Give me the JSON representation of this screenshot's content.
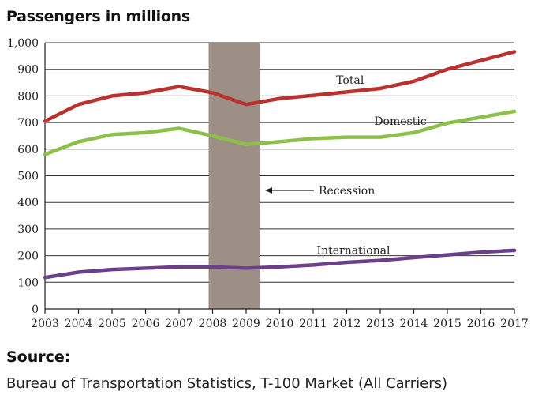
{
  "header": {
    "title": "Passengers in millions"
  },
  "source": {
    "label": "Source:",
    "text": "Bureau of Transportation Statistics, T-100 Market (All Carriers)"
  },
  "chart_data": {
    "type": "line",
    "x": [
      2003,
      2004,
      2005,
      2006,
      2007,
      2008,
      2009,
      2010,
      2011,
      2012,
      2013,
      2014,
      2015,
      2016,
      2017
    ],
    "x_tick_labels": [
      "2003",
      "2004",
      "2005",
      "2006",
      "2007",
      "2008",
      "2009",
      "2010",
      "2011",
      "2012",
      "2013",
      "2014",
      "2015",
      "2016",
      "2017"
    ],
    "y_tick_values": [
      0,
      100,
      200,
      300,
      400,
      500,
      600,
      700,
      800,
      900,
      1000
    ],
    "y_tick_labels": [
      "0",
      "100",
      "200",
      "300",
      "400",
      "500",
      "600",
      "700",
      "800",
      "900",
      "1,000"
    ],
    "ylim": [
      0,
      1000
    ],
    "grid": true,
    "series": [
      {
        "name": "Total",
        "color": "#b8322f",
        "values": [
          705,
          768,
          800,
          812,
          835,
          812,
          768,
          790,
          802,
          815,
          828,
          855,
          900,
          933,
          966
        ]
      },
      {
        "name": "Domestic",
        "color": "#8cc04b",
        "values": [
          580,
          628,
          655,
          662,
          678,
          650,
          618,
          628,
          640,
          645,
          645,
          662,
          698,
          720,
          742
        ]
      },
      {
        "name": "International",
        "color": "#6b3f8a",
        "values": [
          118,
          138,
          148,
          153,
          158,
          158,
          153,
          158,
          165,
          175,
          182,
          193,
          203,
          213,
          220
        ]
      }
    ],
    "shaded_region": {
      "x_start": 2008,
      "x_end": 2009,
      "color": "#9e8f86",
      "label": "Recession"
    },
    "annotations": [
      "Total",
      "Domestic",
      "International",
      "Recession"
    ]
  }
}
